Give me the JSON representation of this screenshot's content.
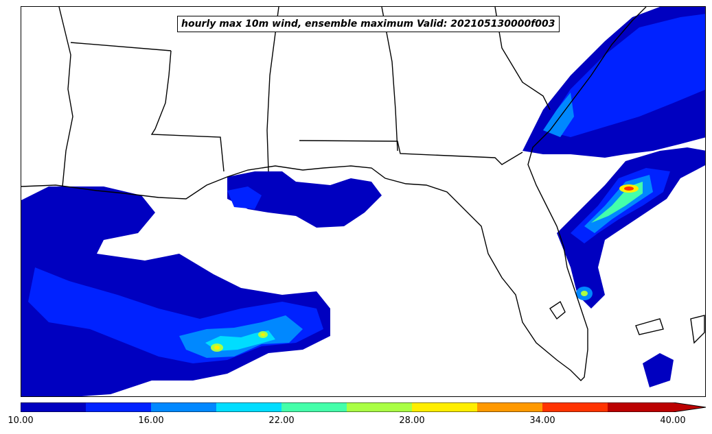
{
  "map": {
    "title": "hourly max 10m wind, ensemble maximum Valid: 202105130000f003",
    "region": "southeastern United States and Gulf of Mexico",
    "projection_note": "state boundaries and coastlines drawn in black"
  },
  "legend": {
    "tick_labels": [
      "10.00",
      "16.00",
      "22.00",
      "28.00",
      "34.00",
      "40.00"
    ],
    "levels": [
      10,
      13,
      16,
      19,
      22,
      25,
      28,
      31,
      34,
      37,
      40
    ],
    "extend": "max",
    "colors": [
      "#0000c0",
      "#0022ff",
      "#0088ff",
      "#00ddff",
      "#44ffaa",
      "#aaff44",
      "#ffee00",
      "#ff9900",
      "#ff3300",
      "#bb0000"
    ]
  }
}
